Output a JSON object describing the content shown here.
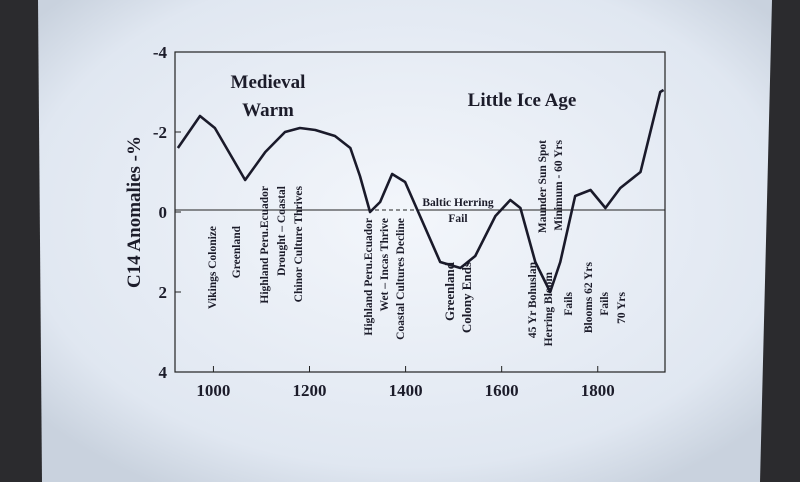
{
  "chart_data": {
    "type": "line",
    "y_label": "C14 Anomalies -%",
    "labels": [
      "Medieval",
      "Warm",
      "Little Ice Age",
      "Baltic Herring",
      "Fail"
    ],
    "events": [
      "Vikings Colonize",
      "Greenland",
      "Highland Peru.Ecuador",
      "Drought – Coastal",
      "Chinor Culture Thrives",
      "Highland Peru.Ecuador",
      "Wet – Incas Thrive",
      "Coastal Cultures Decline",
      "Greenland",
      "Colony Ends",
      "45 Yr Bohuslan",
      "Herring Bloom",
      "Maunder Sun Spot",
      "Minimum - 60 Yrs",
      "Fails",
      "Blooms 62 Yrs",
      "Fails",
      "70 Yrs"
    ],
    "x": [
      926,
      972,
      1003,
      1066,
      1108,
      1149,
      1180,
      1212,
      1253,
      1285,
      1305,
      1326,
      1347,
      1372,
      1399,
      1430,
      1472,
      1514,
      1545,
      1587,
      1618,
      1639,
      1670,
      1701,
      1722,
      1753,
      1785,
      1816,
      1847,
      1889,
      1930,
      1937
    ],
    "values": [
      -1.6,
      -2.4,
      -2.1,
      -0.8,
      -1.5,
      -2.0,
      -2.1,
      -2.05,
      -1.9,
      -1.6,
      -0.9,
      0,
      -0.25,
      -0.95,
      -0.75,
      0.1,
      1.25,
      1.4,
      1.1,
      0.1,
      -0.3,
      -0.1,
      1.25,
      2.0,
      1.25,
      -0.4,
      -0.55,
      -0.1,
      -0.6,
      -1.0,
      -3.0,
      -3.05
    ],
    "color": "#1a1a2a",
    "xlim": [
      920,
      1940
    ],
    "xticks": [
      1000,
      1200,
      1400,
      1600,
      1800
    ],
    "ylim": [
      4,
      -4
    ],
    "yticks": [
      -4,
      -2,
      0,
      2,
      4
    ]
  }
}
